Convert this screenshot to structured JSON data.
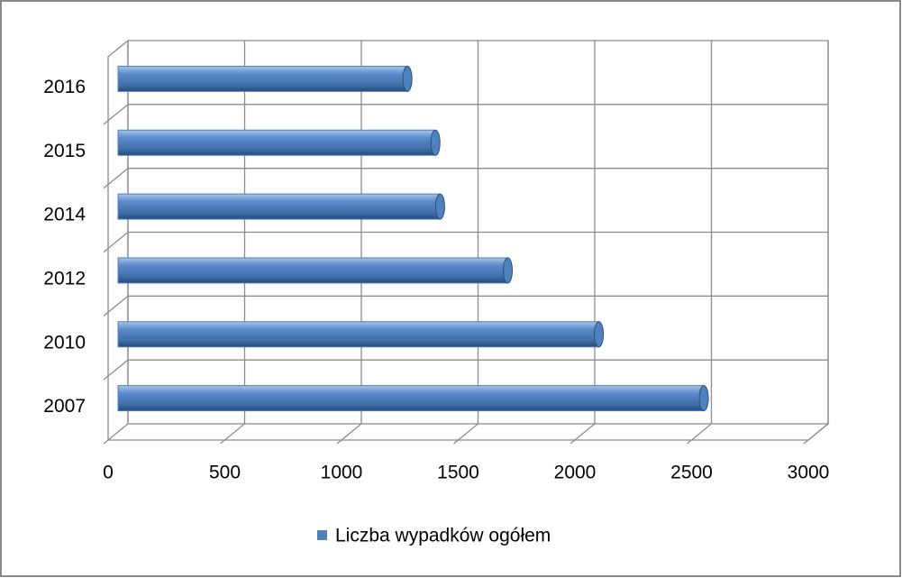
{
  "chart_data": {
    "type": "bar",
    "orientation": "horizontal",
    "categories": [
      "2007",
      "2010",
      "2012",
      "2014",
      "2015",
      "2016"
    ],
    "series": [
      {
        "name": "Liczba wypadków ogółem",
        "color": "#4f81bd",
        "values": [
          2510,
          2060,
          1670,
          1380,
          1360,
          1240
        ]
      }
    ],
    "xlim": [
      0,
      3000
    ],
    "xticks": [
      0,
      500,
      1000,
      1500,
      2000,
      2500,
      3000
    ],
    "grid": true,
    "legend": "bottom"
  }
}
